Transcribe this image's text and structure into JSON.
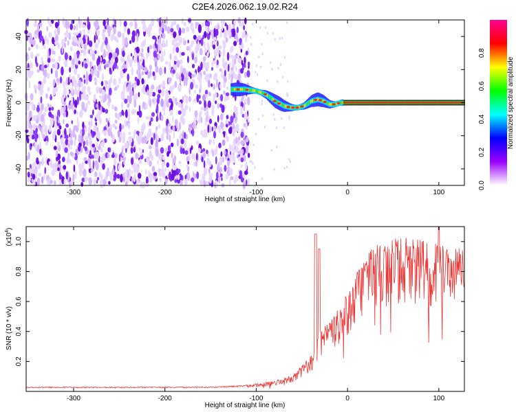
{
  "title": "C2E4.2026.062.19.02.R24",
  "chart_data": [
    {
      "type": "heatmap",
      "xlabel": "Height of straight line (km)",
      "ylabel": "Frequency (Hz)",
      "xlim": [
        -352,
        128
      ],
      "ylim": [
        -50,
        50
      ],
      "xticks": [
        -300,
        -200,
        -100,
        0,
        100
      ],
      "yticks": [
        -40,
        -20,
        0,
        20,
        40
      ],
      "noise_region_x": [
        -352,
        -108
      ],
      "ridge": {
        "x": [
          -128,
          -113,
          -100,
          -90,
          -80,
          -70,
          -62,
          -55,
          -48,
          -40,
          -33,
          -27,
          -20,
          -14,
          -8,
          0,
          128
        ],
        "y": [
          8,
          8,
          7,
          5,
          1,
          -2,
          -3,
          -3,
          -2,
          1,
          2,
          1,
          -1,
          -1,
          0,
          0,
          0
        ]
      },
      "colorbar": {
        "label": "Normalized spectral amplitude",
        "range": [
          0,
          1
        ],
        "ticks": [
          "0.0",
          "0.2",
          "0.4",
          "0.6",
          "0.8"
        ],
        "colors": [
          "#ffffff",
          "#9d00ff",
          "#0000ff",
          "#00ffff",
          "#00ff00",
          "#ffff00",
          "#ff0000",
          "#ff0090"
        ]
      },
      "grid": false
    },
    {
      "type": "line",
      "xlabel": "Height of straight line (km)",
      "ylabel": "SNR (10 * v/v)",
      "yscale_label": "(x10",
      "yscale_exp": "4",
      "yscale_close": ")",
      "xlim": [
        -352,
        128
      ],
      "ylim": [
        0,
        1.1
      ],
      "xticks": [
        -300,
        -200,
        -100,
        0,
        100
      ],
      "yticks": [
        "0.2",
        "0.4",
        "0.6",
        "0.8",
        "1.0"
      ],
      "series": [
        {
          "color": "#ee3333",
          "envelope": {
            "x": [
              -352,
              -150,
              -115,
              -100,
              -80,
              -60,
              -50,
              -40,
              -34,
              -30,
              -20,
              -10,
              0,
              10,
              20,
              30,
              40,
              50,
              60,
              70,
              80,
              90,
              100,
              110,
              120,
              128
            ],
            "y": [
              0.03,
              0.03,
              0.04,
              0.05,
              0.07,
              0.11,
              0.17,
              0.24,
              0.32,
              0.4,
              0.48,
              0.56,
              0.66,
              0.79,
              0.9,
              0.98,
              1.02,
              1.04,
              1.03,
              1.02,
              1.01,
              1.0,
              0.99,
              0.98,
              0.96,
              0.94
            ]
          }
        }
      ],
      "grid": false
    }
  ]
}
